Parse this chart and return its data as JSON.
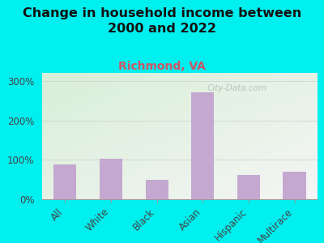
{
  "categories": [
    "All",
    "White",
    "Black",
    "Asian",
    "Hispanic",
    "Multirace"
  ],
  "values": [
    88,
    103,
    50,
    270,
    62,
    70
  ],
  "bar_color": "#c4a8d0",
  "background_color": "#00EFEF",
  "plot_bg_color_topleft": "#d8efd8",
  "plot_bg_color_bottomright": "#f5f5f5",
  "title": "Change in household income between\n2000 and 2022",
  "subtitle": "Richmond, VA",
  "subtitle_color": "#cc5566",
  "title_color": "#111111",
  "watermark": "City-Data.com",
  "yticks": [
    0,
    100,
    200,
    300
  ],
  "ylim": [
    0,
    320
  ],
  "title_fontsize": 11.5,
  "subtitle_fontsize": 10,
  "tick_fontsize": 8.5
}
